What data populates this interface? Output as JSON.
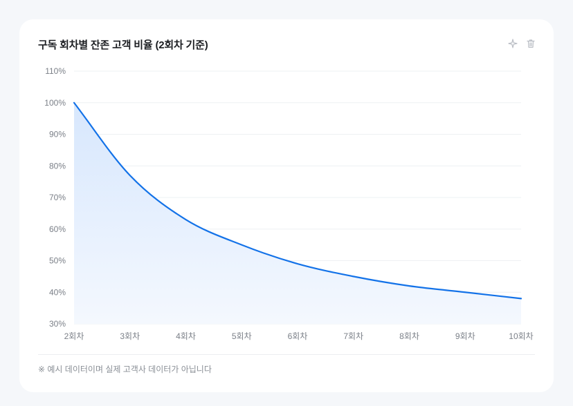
{
  "card": {
    "title": "구독 회차별 잔존 고객 비율 (2회차 기준)",
    "actions": {
      "sparkle_icon": "sparkle-icon",
      "delete_icon": "trash-icon"
    },
    "footnote": "※ 예시 데이터이며 실제 고객사 데이터가 아닙니다"
  },
  "chart_data": {
    "type": "area",
    "title": "구독 회차별 잔존 고객 비율 (2회차 기준)",
    "categories": [
      "2회차",
      "3회차",
      "4회차",
      "5회차",
      "6회차",
      "7회차",
      "8회차",
      "9회차",
      "10회차"
    ],
    "series": [
      {
        "values": [
          100,
          77,
          63,
          55,
          49,
          45,
          42,
          40,
          38
        ]
      }
    ],
    "y_ticks": [
      "30%",
      "40%",
      "50%",
      "60%",
      "70%",
      "80%",
      "90%",
      "100%",
      "110%"
    ],
    "ylim": [
      30,
      110
    ],
    "grid": true,
    "legend": "none",
    "colors": {
      "line": "#1372e8",
      "fill_top": "#d7e7fd",
      "fill_bottom": "#f4f8fe",
      "grid": "#eef0f3"
    }
  }
}
